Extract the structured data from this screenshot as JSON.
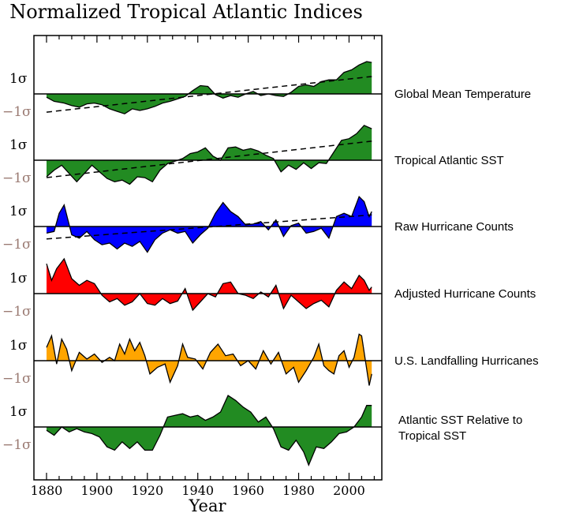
{
  "chart_data": {
    "type": "area",
    "title": "Normalized Tropical Atlantic Indices",
    "xlabel": "Year",
    "x_ticks": [
      1880,
      1900,
      1920,
      1940,
      1960,
      1980,
      2000
    ],
    "xlim": [
      1875,
      2013
    ],
    "y_tick_labels": {
      "plus": "1σ",
      "minus": "−1σ"
    },
    "series": [
      {
        "name": "Global Mean Temperature",
        "label_lines": [
          "Global Mean Temperature"
        ],
        "color": "#228B22",
        "trend": [
          -1.1,
          1.05
        ],
        "knots": [
          [
            1880,
            -0.2
          ],
          [
            1883,
            -0.45
          ],
          [
            1887,
            -0.55
          ],
          [
            1890,
            -0.7
          ],
          [
            1893,
            -0.8
          ],
          [
            1896,
            -0.6
          ],
          [
            1899,
            -0.55
          ],
          [
            1902,
            -0.65
          ],
          [
            1905,
            -0.9
          ],
          [
            1908,
            -1.05
          ],
          [
            1911,
            -1.2
          ],
          [
            1914,
            -0.9
          ],
          [
            1917,
            -1.0
          ],
          [
            1920,
            -0.9
          ],
          [
            1923,
            -0.75
          ],
          [
            1926,
            -0.55
          ],
          [
            1929,
            -0.45
          ],
          [
            1932,
            -0.3
          ],
          [
            1935,
            -0.15
          ],
          [
            1938,
            0.2
          ],
          [
            1941,
            0.5
          ],
          [
            1944,
            0.45
          ],
          [
            1947,
            -0.05
          ],
          [
            1950,
            -0.25
          ],
          [
            1953,
            -0.1
          ],
          [
            1956,
            -0.2
          ],
          [
            1959,
            0.0
          ],
          [
            1962,
            0.15
          ],
          [
            1965,
            -0.1
          ],
          [
            1968,
            0.0
          ],
          [
            1971,
            -0.1
          ],
          [
            1974,
            -0.15
          ],
          [
            1977,
            0.1
          ],
          [
            1980,
            0.45
          ],
          [
            1983,
            0.55
          ],
          [
            1986,
            0.45
          ],
          [
            1989,
            0.75
          ],
          [
            1992,
            0.85
          ],
          [
            1995,
            0.85
          ],
          [
            1998,
            1.3
          ],
          [
            2001,
            1.45
          ],
          [
            2004,
            1.75
          ],
          [
            2007,
            1.95
          ],
          [
            2009,
            1.9
          ]
        ]
      },
      {
        "name": "Tropical Atlantic SST",
        "label_lines": [
          "Tropical Atlantic SST"
        ],
        "color": "#228B22",
        "trend": [
          -1.05,
          1.15
        ],
        "knots": [
          [
            1880,
            -1.0
          ],
          [
            1883,
            -0.6
          ],
          [
            1886,
            -0.3
          ],
          [
            1889,
            -0.8
          ],
          [
            1892,
            -1.3
          ],
          [
            1895,
            -0.8
          ],
          [
            1898,
            -0.3
          ],
          [
            1901,
            -0.7
          ],
          [
            1904,
            -1.1
          ],
          [
            1907,
            -1.3
          ],
          [
            1910,
            -1.2
          ],
          [
            1913,
            -1.45
          ],
          [
            1916,
            -1.0
          ],
          [
            1919,
            -1.05
          ],
          [
            1922,
            -1.3
          ],
          [
            1925,
            -0.6
          ],
          [
            1928,
            -0.2
          ],
          [
            1931,
            -0.05
          ],
          [
            1934,
            0.1
          ],
          [
            1937,
            0.4
          ],
          [
            1940,
            0.5
          ],
          [
            1943,
            0.75
          ],
          [
            1946,
            0.25
          ],
          [
            1949,
            0.0
          ],
          [
            1952,
            0.75
          ],
          [
            1955,
            0.8
          ],
          [
            1958,
            0.6
          ],
          [
            1961,
            0.7
          ],
          [
            1964,
            0.55
          ],
          [
            1967,
            0.3
          ],
          [
            1970,
            0.1
          ],
          [
            1973,
            -0.7
          ],
          [
            1976,
            -0.3
          ],
          [
            1979,
            -0.55
          ],
          [
            1982,
            -0.15
          ],
          [
            1985,
            -0.5
          ],
          [
            1988,
            -0.15
          ],
          [
            1991,
            -0.2
          ],
          [
            1994,
            0.5
          ],
          [
            1997,
            1.2
          ],
          [
            2000,
            1.3
          ],
          [
            2003,
            1.6
          ],
          [
            2006,
            2.1
          ],
          [
            2009,
            1.9
          ]
        ]
      },
      {
        "name": "Raw Hurricane Counts",
        "label_lines": [
          "Raw Hurricane Counts"
        ],
        "color": "#0000FF",
        "trend": [
          -0.75,
          0.7
        ],
        "knots": [
          [
            1880,
            -0.4
          ],
          [
            1883,
            -0.3
          ],
          [
            1885,
            0.8
          ],
          [
            1887,
            1.3
          ],
          [
            1890,
            -0.5
          ],
          [
            1893,
            -0.7
          ],
          [
            1896,
            -0.3
          ],
          [
            1899,
            -0.8
          ],
          [
            1902,
            -1.1
          ],
          [
            1905,
            -1.0
          ],
          [
            1908,
            -1.35
          ],
          [
            1911,
            -1.0
          ],
          [
            1914,
            -1.2
          ],
          [
            1917,
            -0.9
          ],
          [
            1920,
            -1.55
          ],
          [
            1923,
            -0.8
          ],
          [
            1926,
            -0.4
          ],
          [
            1929,
            -0.2
          ],
          [
            1932,
            -0.4
          ],
          [
            1935,
            -0.3
          ],
          [
            1938,
            -1.0
          ],
          [
            1941,
            -0.5
          ],
          [
            1944,
            -0.1
          ],
          [
            1947,
            0.8
          ],
          [
            1950,
            1.45
          ],
          [
            1953,
            0.9
          ],
          [
            1956,
            0.6
          ],
          [
            1959,
            0.1
          ],
          [
            1962,
            0.15
          ],
          [
            1965,
            0.3
          ],
          [
            1968,
            -0.2
          ],
          [
            1971,
            0.4
          ],
          [
            1974,
            -0.6
          ],
          [
            1977,
            0.05
          ],
          [
            1980,
            0.2
          ],
          [
            1983,
            -0.4
          ],
          [
            1986,
            -0.3
          ],
          [
            1989,
            -0.1
          ],
          [
            1992,
            -0.7
          ],
          [
            1995,
            0.6
          ],
          [
            1998,
            0.8
          ],
          [
            2001,
            0.6
          ],
          [
            2004,
            1.8
          ],
          [
            2006,
            1.5
          ],
          [
            2008,
            0.6
          ],
          [
            2009,
            0.9
          ]
        ]
      },
      {
        "name": "Adjusted Hurricane Counts",
        "label_lines": [
          "Adjusted Hurricane Counts"
        ],
        "color": "#FF0000",
        "trend": null,
        "knots": [
          [
            1880,
            1.8
          ],
          [
            1882,
            0.8
          ],
          [
            1884,
            1.5
          ],
          [
            1887,
            2.1
          ],
          [
            1890,
            0.9
          ],
          [
            1893,
            0.5
          ],
          [
            1896,
            0.8
          ],
          [
            1899,
            0.6
          ],
          [
            1902,
            -0.1
          ],
          [
            1905,
            -0.5
          ],
          [
            1908,
            -0.3
          ],
          [
            1911,
            -0.7
          ],
          [
            1914,
            -0.5
          ],
          [
            1917,
            0.0
          ],
          [
            1920,
            -0.6
          ],
          [
            1923,
            -0.7
          ],
          [
            1926,
            -0.3
          ],
          [
            1929,
            -0.6
          ],
          [
            1932,
            -0.45
          ],
          [
            1935,
            0.3
          ],
          [
            1938,
            -1.0
          ],
          [
            1941,
            -0.5
          ],
          [
            1944,
            0.0
          ],
          [
            1947,
            -0.2
          ],
          [
            1950,
            0.6
          ],
          [
            1953,
            0.7
          ],
          [
            1956,
            0.0
          ],
          [
            1959,
            -0.1
          ],
          [
            1962,
            -0.3
          ],
          [
            1965,
            0.1
          ],
          [
            1968,
            -0.2
          ],
          [
            1971,
            0.5
          ],
          [
            1974,
            -0.9
          ],
          [
            1977,
            -0.1
          ],
          [
            1980,
            -0.5
          ],
          [
            1983,
            -0.9
          ],
          [
            1986,
            -0.6
          ],
          [
            1989,
            -0.4
          ],
          [
            1992,
            -0.8
          ],
          [
            1995,
            0.2
          ],
          [
            1998,
            0.7
          ],
          [
            2001,
            0.3
          ],
          [
            2004,
            1.1
          ],
          [
            2006,
            0.8
          ],
          [
            2008,
            0.2
          ],
          [
            2009,
            0.4
          ]
        ]
      },
      {
        "name": "U.S. Landfalling Hurricanes",
        "label_lines": [
          "U.S. Landfalling Hurricanes"
        ],
        "color": "#FFA500",
        "trend": null,
        "knots": [
          [
            1880,
            0.8
          ],
          [
            1882,
            1.5
          ],
          [
            1884,
            -0.2
          ],
          [
            1886,
            1.3
          ],
          [
            1888,
            0.7
          ],
          [
            1890,
            -0.6
          ],
          [
            1893,
            0.5
          ],
          [
            1896,
            0.1
          ],
          [
            1899,
            0.4
          ],
          [
            1902,
            -0.1
          ],
          [
            1905,
            0.2
          ],
          [
            1907,
            0.0
          ],
          [
            1909,
            1.0
          ],
          [
            1911,
            0.4
          ],
          [
            1913,
            1.3
          ],
          [
            1915,
            0.6
          ],
          [
            1917,
            1.1
          ],
          [
            1919,
            0.3
          ],
          [
            1921,
            -0.8
          ],
          [
            1924,
            -0.4
          ],
          [
            1927,
            -0.2
          ],
          [
            1929,
            -1.3
          ],
          [
            1932,
            -0.3
          ],
          [
            1934,
            1.0
          ],
          [
            1936,
            0.2
          ],
          [
            1939,
            0.1
          ],
          [
            1942,
            -0.5
          ],
          [
            1945,
            0.5
          ],
          [
            1948,
            1.0
          ],
          [
            1951,
            0.3
          ],
          [
            1954,
            0.4
          ],
          [
            1957,
            -0.3
          ],
          [
            1960,
            0.0
          ],
          [
            1963,
            -0.5
          ],
          [
            1966,
            0.6
          ],
          [
            1969,
            -0.2
          ],
          [
            1972,
            0.5
          ],
          [
            1975,
            -0.8
          ],
          [
            1978,
            -0.4
          ],
          [
            1980,
            -1.3
          ],
          [
            1983,
            -0.6
          ],
          [
            1986,
            0.2
          ],
          [
            1988,
            1.0
          ],
          [
            1990,
            -0.3
          ],
          [
            1992,
            -0.6
          ],
          [
            1994,
            -0.8
          ],
          [
            1996,
            0.3
          ],
          [
            1998,
            0.6
          ],
          [
            2000,
            -0.4
          ],
          [
            2002,
            0.2
          ],
          [
            2004,
            1.6
          ],
          [
            2005,
            1.5
          ],
          [
            2007,
            -0.5
          ],
          [
            2008,
            -1.5
          ],
          [
            2009,
            -0.8
          ]
        ]
      },
      {
        "name": "Atlantic SST Relative to Tropical SST",
        "label_lines": [
          "Atlantic SST Relative to",
          "Tropical SST"
        ],
        "color": "#228B22",
        "trend": null,
        "knots": [
          [
            1880,
            -0.2
          ],
          [
            1883,
            -0.5
          ],
          [
            1886,
            0.0
          ],
          [
            1889,
            -0.3
          ],
          [
            1892,
            -0.1
          ],
          [
            1895,
            -0.3
          ],
          [
            1898,
            -0.4
          ],
          [
            1901,
            -0.6
          ],
          [
            1904,
            -1.2
          ],
          [
            1907,
            -1.4
          ],
          [
            1910,
            -0.9
          ],
          [
            1913,
            -1.3
          ],
          [
            1916,
            -0.9
          ],
          [
            1919,
            -1.4
          ],
          [
            1922,
            -1.4
          ],
          [
            1925,
            -0.5
          ],
          [
            1928,
            0.6
          ],
          [
            1931,
            0.7
          ],
          [
            1934,
            0.8
          ],
          [
            1937,
            0.6
          ],
          [
            1940,
            0.7
          ],
          [
            1943,
            0.4
          ],
          [
            1946,
            0.6
          ],
          [
            1949,
            0.9
          ],
          [
            1952,
            1.9
          ],
          [
            1955,
            1.6
          ],
          [
            1958,
            1.2
          ],
          [
            1961,
            0.9
          ],
          [
            1964,
            0.3
          ],
          [
            1967,
            0.6
          ],
          [
            1970,
            -0.1
          ],
          [
            1973,
            -1.2
          ],
          [
            1976,
            -1.4
          ],
          [
            1979,
            -0.8
          ],
          [
            1982,
            -1.5
          ],
          [
            1984,
            -2.3
          ],
          [
            1987,
            -1.2
          ],
          [
            1990,
            -1.3
          ],
          [
            1993,
            -0.9
          ],
          [
            1996,
            -0.4
          ],
          [
            1999,
            -0.3
          ],
          [
            2002,
            0.0
          ],
          [
            2005,
            0.6
          ],
          [
            2007,
            1.3
          ],
          [
            2009,
            1.3
          ]
        ]
      }
    ]
  }
}
